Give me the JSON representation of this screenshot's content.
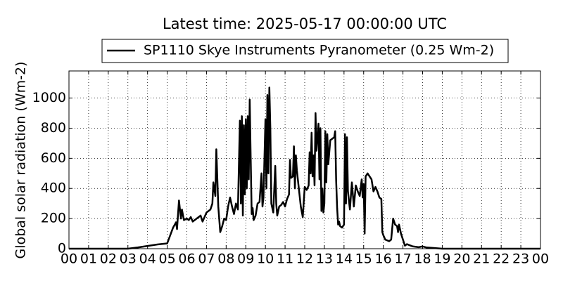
{
  "chart_data": {
    "type": "line",
    "title": "Latest time: 2025-05-17 00:00:00 UTC",
    "ylabel": "Global solar radiation (Wm-2)",
    "xlim": [
      0,
      24
    ],
    "ylim": [
      0,
      1180
    ],
    "xticks": [
      {
        "value": 0,
        "label": "00"
      },
      {
        "value": 1,
        "label": "01"
      },
      {
        "value": 2,
        "label": "02"
      },
      {
        "value": 3,
        "label": "03"
      },
      {
        "value": 4,
        "label": "04"
      },
      {
        "value": 5,
        "label": "05"
      },
      {
        "value": 6,
        "label": "06"
      },
      {
        "value": 7,
        "label": "07"
      },
      {
        "value": 8,
        "label": "08"
      },
      {
        "value": 9,
        "label": "09"
      },
      {
        "value": 10,
        "label": "10"
      },
      {
        "value": 11,
        "label": "11"
      },
      {
        "value": 12,
        "label": "12"
      },
      {
        "value": 13,
        "label": "13"
      },
      {
        "value": 14,
        "label": "14"
      },
      {
        "value": 15,
        "label": "15"
      },
      {
        "value": 16,
        "label": "16"
      },
      {
        "value": 17,
        "label": "17"
      },
      {
        "value": 18,
        "label": "18"
      },
      {
        "value": 19,
        "label": "19"
      },
      {
        "value": 20,
        "label": "20"
      },
      {
        "value": 21,
        "label": "21"
      },
      {
        "value": 22,
        "label": "22"
      },
      {
        "value": 23,
        "label": "23"
      },
      {
        "value": 24,
        "label": "00"
      }
    ],
    "yticks": [
      0,
      200,
      400,
      600,
      800,
      1000
    ],
    "grid": true,
    "legend": "top",
    "x": [
      0,
      3,
      3.5,
      4,
      4.5,
      5,
      5.3,
      5.45,
      5.5,
      5.6,
      5.7,
      5.75,
      5.85,
      6,
      6.1,
      6.2,
      6.3,
      6.5,
      6.7,
      6.8,
      6.9,
      7.0,
      7.2,
      7.3,
      7.35,
      7.45,
      7.5,
      7.6,
      7.7,
      7.8,
      7.9,
      8.0,
      8.1,
      8.2,
      8.3,
      8.4,
      8.5,
      8.6,
      8.7,
      8.75,
      8.8,
      8.85,
      8.9,
      8.95,
      9.0,
      9.05,
      9.1,
      9.15,
      9.2,
      9.25,
      9.3,
      9.35,
      9.4,
      9.5,
      9.6,
      9.7,
      9.8,
      9.85,
      9.9,
      10.0,
      10.05,
      10.1,
      10.15,
      10.2,
      10.25,
      10.3,
      10.4,
      10.5,
      10.55,
      10.6,
      10.7,
      10.8,
      10.9,
      11.0,
      11.1,
      11.2,
      11.25,
      11.3,
      11.4,
      11.45,
      11.5,
      11.55,
      11.6,
      11.7,
      11.8,
      11.9,
      12.0,
      12.1,
      12.2,
      12.25,
      12.3,
      12.35,
      12.4,
      12.45,
      12.5,
      12.55,
      12.6,
      12.7,
      12.75,
      12.8,
      12.85,
      12.9,
      12.95,
      13.0,
      13.05,
      13.1,
      13.15,
      13.2,
      13.3,
      13.4,
      13.5,
      13.55,
      13.6,
      13.65,
      13.7,
      13.75,
      13.8,
      13.9,
      14.0,
      14.05,
      14.1,
      14.15,
      14.2,
      14.3,
      14.4,
      14.5,
      14.6,
      14.7,
      14.8,
      14.9,
      14.95,
      15.0,
      15.05,
      15.1,
      15.2,
      15.4,
      15.5,
      15.6,
      15.7,
      15.8,
      15.9,
      15.95,
      16.0,
      16.1,
      16.3,
      16.4,
      16.5,
      16.6,
      16.7,
      16.75,
      16.8,
      16.9,
      17.0,
      17.1,
      17.2,
      17.5,
      17.8,
      18.0,
      18.2,
      18.5,
      19.0,
      24
    ],
    "series": [
      {
        "name": "SP1110 Skye Instruments Pyranometer (0.25 Wm-2)",
        "color": "#000000",
        "values": [
          0,
          0,
          8,
          18,
          28,
          35,
          140,
          175,
          130,
          320,
          200,
          260,
          190,
          200,
          190,
          210,
          180,
          200,
          220,
          180,
          210,
          240,
          260,
          300,
          440,
          350,
          660,
          280,
          110,
          150,
          200,
          190,
          280,
          340,
          280,
          230,
          300,
          260,
          850,
          300,
          880,
          220,
          820,
          360,
          860,
          400,
          880,
          460,
          990,
          600,
          230,
          270,
          190,
          220,
          300,
          310,
          500,
          280,
          340,
          860,
          400,
          1020,
          500,
          1070,
          800,
          300,
          240,
          550,
          300,
          220,
          280,
          290,
          310,
          280,
          330,
          360,
          590,
          470,
          480,
          680,
          400,
          620,
          520,
          400,
          280,
          210,
          410,
          390,
          420,
          640,
          500,
          770,
          480,
          620,
          420,
          900,
          650,
          830,
          460,
          800,
          250,
          400,
          240,
          300,
          780,
          440,
          760,
          560,
          720,
          730,
          740,
          780,
          450,
          270,
          160,
          180,
          150,
          140,
          160,
          760,
          300,
          740,
          380,
          260,
          440,
          280,
          420,
          380,
          350,
          460,
          340,
          430,
          100,
          480,
          500,
          460,
          380,
          410,
          380,
          340,
          330,
          110,
          90,
          60,
          50,
          60,
          200,
          160,
          150,
          110,
          160,
          100,
          60,
          20,
          30,
          15,
          10,
          15,
          8,
          5,
          0,
          0
        ]
      }
    ]
  }
}
